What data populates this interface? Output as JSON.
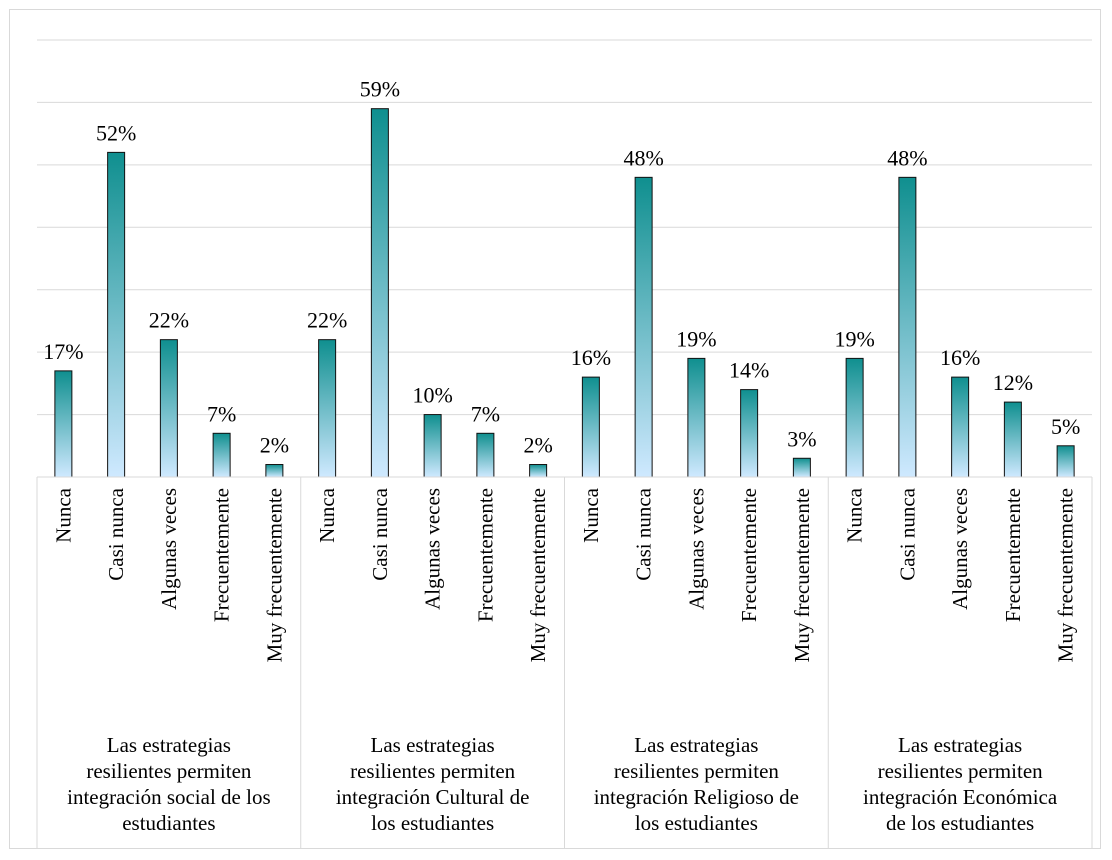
{
  "chart_data": {
    "type": "bar",
    "title": "",
    "xlabel": "",
    "ylabel": "",
    "ylim": [
      0,
      70
    ],
    "grid": true,
    "legend": "none",
    "colors": {
      "bar_top": "#0f8f8f",
      "bar_bottom": "#cfe9ff",
      "bar_edge": "#111111",
      "grid": "#d9d9d9"
    },
    "groups": [
      {
        "label_lines": [
          "Las estrategias",
          "resilientes permiten",
          "integración social de los",
          "estudiantes"
        ],
        "categories": [
          "Nunca",
          "Casi nunca",
          "Algunas veces",
          "Frecuentemente",
          "Muy frecuentemente"
        ],
        "values": [
          17,
          52,
          22,
          7,
          2
        ],
        "labels": [
          "17%",
          "52%",
          "22%",
          "7%",
          "2%"
        ]
      },
      {
        "label_lines": [
          "Las estrategias",
          "resilientes permiten",
          "integración Cultural de",
          "los estudiantes"
        ],
        "categories": [
          "Nunca",
          "Casi nunca",
          "Algunas veces",
          "Frecuentemente",
          "Muy frecuentemente"
        ],
        "values": [
          22,
          59,
          10,
          7,
          2
        ],
        "labels": [
          "22%",
          "59%",
          "10%",
          "7%",
          "2%"
        ]
      },
      {
        "label_lines": [
          "Las estrategias",
          "resilientes permiten",
          "integración Religioso de",
          "los estudiantes"
        ],
        "categories": [
          "Nunca",
          "Casi nunca",
          "Algunas veces",
          "Frecuentemente",
          "Muy frecuentemente"
        ],
        "values": [
          16,
          48,
          19,
          14,
          3
        ],
        "labels": [
          "16%",
          "48%",
          "19%",
          "14%",
          "3%"
        ]
      },
      {
        "label_lines": [
          "Las estrategias",
          "resilientes permiten",
          "integración Económica",
          "de los estudiantes"
        ],
        "categories": [
          "Nunca",
          "Casi nunca",
          "Algunas veces",
          "Frecuentemente",
          "Muy frecuentemente"
        ],
        "values": [
          19,
          48,
          16,
          12,
          5
        ],
        "labels": [
          "19%",
          "48%",
          "16%",
          "12%",
          "5%"
        ]
      }
    ]
  }
}
